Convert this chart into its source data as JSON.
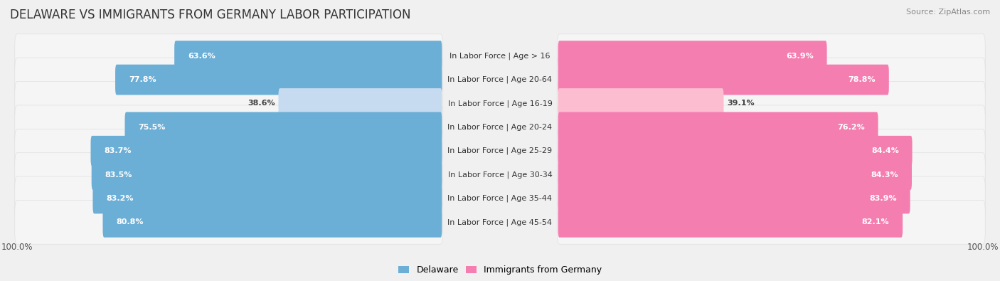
{
  "title": "DELAWARE VS IMMIGRANTS FROM GERMANY LABOR PARTICIPATION",
  "source": "Source: ZipAtlas.com",
  "categories": [
    "In Labor Force | Age > 16",
    "In Labor Force | Age 20-64",
    "In Labor Force | Age 16-19",
    "In Labor Force | Age 20-24",
    "In Labor Force | Age 25-29",
    "In Labor Force | Age 30-34",
    "In Labor Force | Age 35-44",
    "In Labor Force | Age 45-54"
  ],
  "delaware_values": [
    63.6,
    77.8,
    38.6,
    75.5,
    83.7,
    83.5,
    83.2,
    80.8
  ],
  "germany_values": [
    63.9,
    78.8,
    39.1,
    76.2,
    84.4,
    84.3,
    83.9,
    82.1
  ],
  "delaware_color_full": "#6BAED6",
  "delaware_color_light": "#C6DBEF",
  "germany_color_full": "#F47EB0",
  "germany_color_light": "#FBBDCF",
  "row_bg_color": "#F5F5F5",
  "row_bg_edge": "#E0E0E0",
  "background_color": "#F0F0F0",
  "max_value": 100.0,
  "light_threshold": 60,
  "title_fontsize": 12,
  "source_fontsize": 8,
  "label_fontsize": 8,
  "value_fontsize": 8,
  "legend_fontsize": 9
}
